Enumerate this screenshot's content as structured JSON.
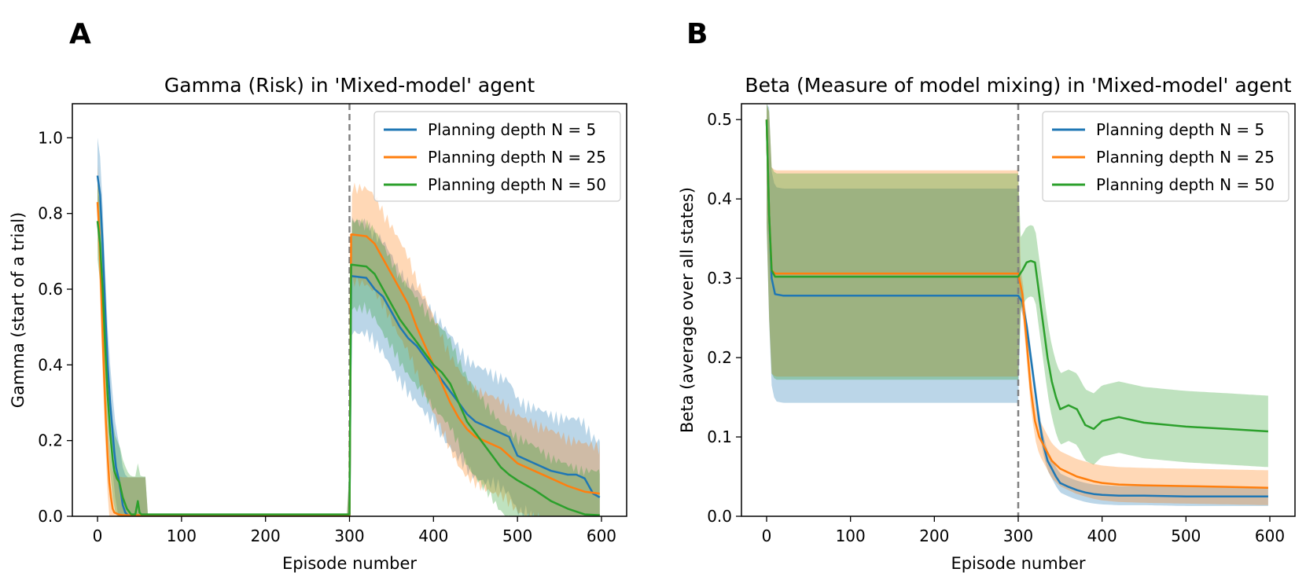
{
  "figure": {
    "panels": [
      {
        "letter": "A"
      },
      {
        "letter": "B"
      }
    ]
  },
  "colors": {
    "n5": "#1f77b4",
    "n25": "#ff7f0e",
    "n50": "#2ca02c",
    "vline": "#808080"
  },
  "chart_data": [
    {
      "type": "line",
      "title": "Gamma (Risk) in 'Mixed-model' agent",
      "xlabel": "Episode number",
      "ylabel": "Gamma (start of a trial)",
      "xlim": [
        -30,
        630
      ],
      "ylim": [
        0,
        1.09
      ],
      "xticks": [
        0,
        100,
        200,
        300,
        400,
        500,
        600
      ],
      "yticks": [
        0.0,
        0.2,
        0.4,
        0.6,
        0.8,
        1.0
      ],
      "tick_labels_x": [
        "0",
        "100",
        "200",
        "300",
        "400",
        "500",
        "600"
      ],
      "tick_labels_y": [
        "0.0",
        "0.2",
        "0.4",
        "0.6",
        "0.8",
        "1.0"
      ],
      "vline_x": 300,
      "legend_position": "top-right",
      "series": [
        {
          "name": "Planning depth N = 5",
          "color": "#1f77b4",
          "x": [
            0,
            3,
            6,
            9,
            12,
            15,
            18,
            20,
            22,
            25,
            28,
            30,
            33,
            36,
            40,
            60,
            100,
            200,
            299,
            300,
            302,
            320,
            330,
            340,
            350,
            360,
            370,
            380,
            390,
            400,
            410,
            420,
            430,
            440,
            450,
            460,
            470,
            480,
            490,
            500,
            510,
            520,
            540,
            560,
            570,
            580,
            590,
            598
          ],
          "y": [
            0.9,
            0.85,
            0.72,
            0.55,
            0.4,
            0.3,
            0.22,
            0.17,
            0.13,
            0.1,
            0.06,
            0.03,
            0.01,
            0.003,
            0.003,
            0.003,
            0.003,
            0.003,
            0.003,
            0.003,
            0.635,
            0.63,
            0.6,
            0.58,
            0.54,
            0.5,
            0.47,
            0.45,
            0.42,
            0.39,
            0.36,
            0.33,
            0.3,
            0.27,
            0.25,
            0.24,
            0.23,
            0.22,
            0.21,
            0.16,
            0.15,
            0.14,
            0.12,
            0.11,
            0.11,
            0.1,
            0.06,
            0.05
          ]
        },
        {
          "name": "Planning depth N = 25",
          "color": "#ff7f0e",
          "x": [
            0,
            2,
            4,
            6,
            8,
            10,
            12,
            14,
            16,
            18,
            20,
            25,
            30,
            40,
            100,
            200,
            299,
            300,
            302,
            320,
            330,
            340,
            350,
            360,
            370,
            380,
            390,
            400,
            410,
            420,
            430,
            440,
            450,
            460,
            470,
            480,
            490,
            500,
            520,
            540,
            560,
            580,
            598
          ],
          "y": [
            0.83,
            0.75,
            0.62,
            0.48,
            0.36,
            0.25,
            0.16,
            0.09,
            0.05,
            0.02,
            0.01,
            0.005,
            0.003,
            0.003,
            0.003,
            0.003,
            0.003,
            0.003,
            0.745,
            0.74,
            0.72,
            0.68,
            0.64,
            0.6,
            0.56,
            0.5,
            0.45,
            0.4,
            0.35,
            0.3,
            0.26,
            0.23,
            0.21,
            0.2,
            0.19,
            0.18,
            0.16,
            0.14,
            0.12,
            0.1,
            0.08,
            0.065,
            0.06
          ]
        },
        {
          "name": "Planning depth N = 50",
          "color": "#2ca02c",
          "x": [
            0,
            3,
            6,
            9,
            12,
            15,
            18,
            20,
            23,
            26,
            30,
            35,
            40,
            45,
            48,
            50,
            52,
            60,
            100,
            200,
            299,
            300,
            302,
            320,
            330,
            340,
            350,
            360,
            370,
            380,
            390,
            400,
            410,
            420,
            430,
            440,
            450,
            460,
            470,
            480,
            490,
            500,
            520,
            540,
            560,
            580,
            598
          ],
          "y": [
            0.78,
            0.72,
            0.6,
            0.45,
            0.32,
            0.22,
            0.15,
            0.12,
            0.1,
            0.09,
            0.05,
            0.02,
            0.005,
            0.005,
            0.04,
            0.01,
            0.005,
            0.005,
            0.005,
            0.005,
            0.005,
            0.005,
            0.665,
            0.66,
            0.64,
            0.6,
            0.56,
            0.52,
            0.49,
            0.46,
            0.43,
            0.4,
            0.38,
            0.35,
            0.3,
            0.25,
            0.22,
            0.19,
            0.16,
            0.13,
            0.11,
            0.095,
            0.07,
            0.04,
            0.02,
            0.005,
            0.003
          ]
        }
      ]
    },
    {
      "type": "line",
      "title": "Beta (Measure of model mixing) in 'Mixed-model' agent",
      "xlabel": "Episode number",
      "ylabel": "Beta (average over all states)",
      "xlim": [
        -30,
        630
      ],
      "ylim": [
        0,
        0.52
      ],
      "xticks": [
        0,
        100,
        200,
        300,
        400,
        500,
        600
      ],
      "yticks": [
        0.0,
        0.1,
        0.2,
        0.3,
        0.4,
        0.5
      ],
      "tick_labels_x": [
        "0",
        "100",
        "200",
        "300",
        "400",
        "500",
        "600"
      ],
      "tick_labels_y": [
        "0.0",
        "0.1",
        "0.2",
        "0.3",
        "0.4",
        "0.5"
      ],
      "vline_x": 300,
      "legend_position": "top-right",
      "series": [
        {
          "name": "Planning depth N = 5",
          "color": "#1f77b4",
          "x": [
            0,
            3,
            6,
            10,
            20,
            50,
            100,
            200,
            300,
            305,
            310,
            315,
            320,
            325,
            330,
            335,
            340,
            345,
            350,
            360,
            370,
            380,
            390,
            400,
            420,
            450,
            500,
            550,
            598
          ],
          "y": [
            0.5,
            0.38,
            0.3,
            0.28,
            0.278,
            0.278,
            0.278,
            0.278,
            0.278,
            0.27,
            0.24,
            0.2,
            0.16,
            0.12,
            0.09,
            0.07,
            0.06,
            0.05,
            0.042,
            0.037,
            0.033,
            0.03,
            0.028,
            0.027,
            0.026,
            0.026,
            0.025,
            0.025,
            0.025
          ]
        },
        {
          "name": "Planning depth N = 25",
          "color": "#ff7f0e",
          "x": [
            0,
            3,
            6,
            10,
            20,
            50,
            100,
            200,
            300,
            305,
            310,
            315,
            320,
            325,
            330,
            335,
            340,
            345,
            350,
            360,
            370,
            380,
            390,
            400,
            420,
            450,
            500,
            550,
            598
          ],
          "y": [
            0.5,
            0.38,
            0.31,
            0.306,
            0.306,
            0.306,
            0.306,
            0.306,
            0.306,
            0.28,
            0.22,
            0.16,
            0.12,
            0.1,
            0.09,
            0.08,
            0.07,
            0.065,
            0.06,
            0.055,
            0.05,
            0.047,
            0.044,
            0.042,
            0.04,
            0.039,
            0.038,
            0.037,
            0.036
          ]
        },
        {
          "name": "Planning depth N = 50",
          "color": "#2ca02c",
          "x": [
            0,
            3,
            6,
            10,
            20,
            50,
            100,
            200,
            300,
            305,
            310,
            315,
            320,
            325,
            330,
            335,
            340,
            345,
            350,
            360,
            370,
            380,
            390,
            400,
            420,
            450,
            500,
            550,
            598
          ],
          "y": [
            0.5,
            0.38,
            0.31,
            0.302,
            0.302,
            0.302,
            0.302,
            0.302,
            0.302,
            0.31,
            0.32,
            0.322,
            0.32,
            0.28,
            0.24,
            0.2,
            0.17,
            0.15,
            0.135,
            0.14,
            0.135,
            0.115,
            0.11,
            0.12,
            0.125,
            0.118,
            0.113,
            0.11,
            0.107
          ]
        }
      ]
    }
  ]
}
